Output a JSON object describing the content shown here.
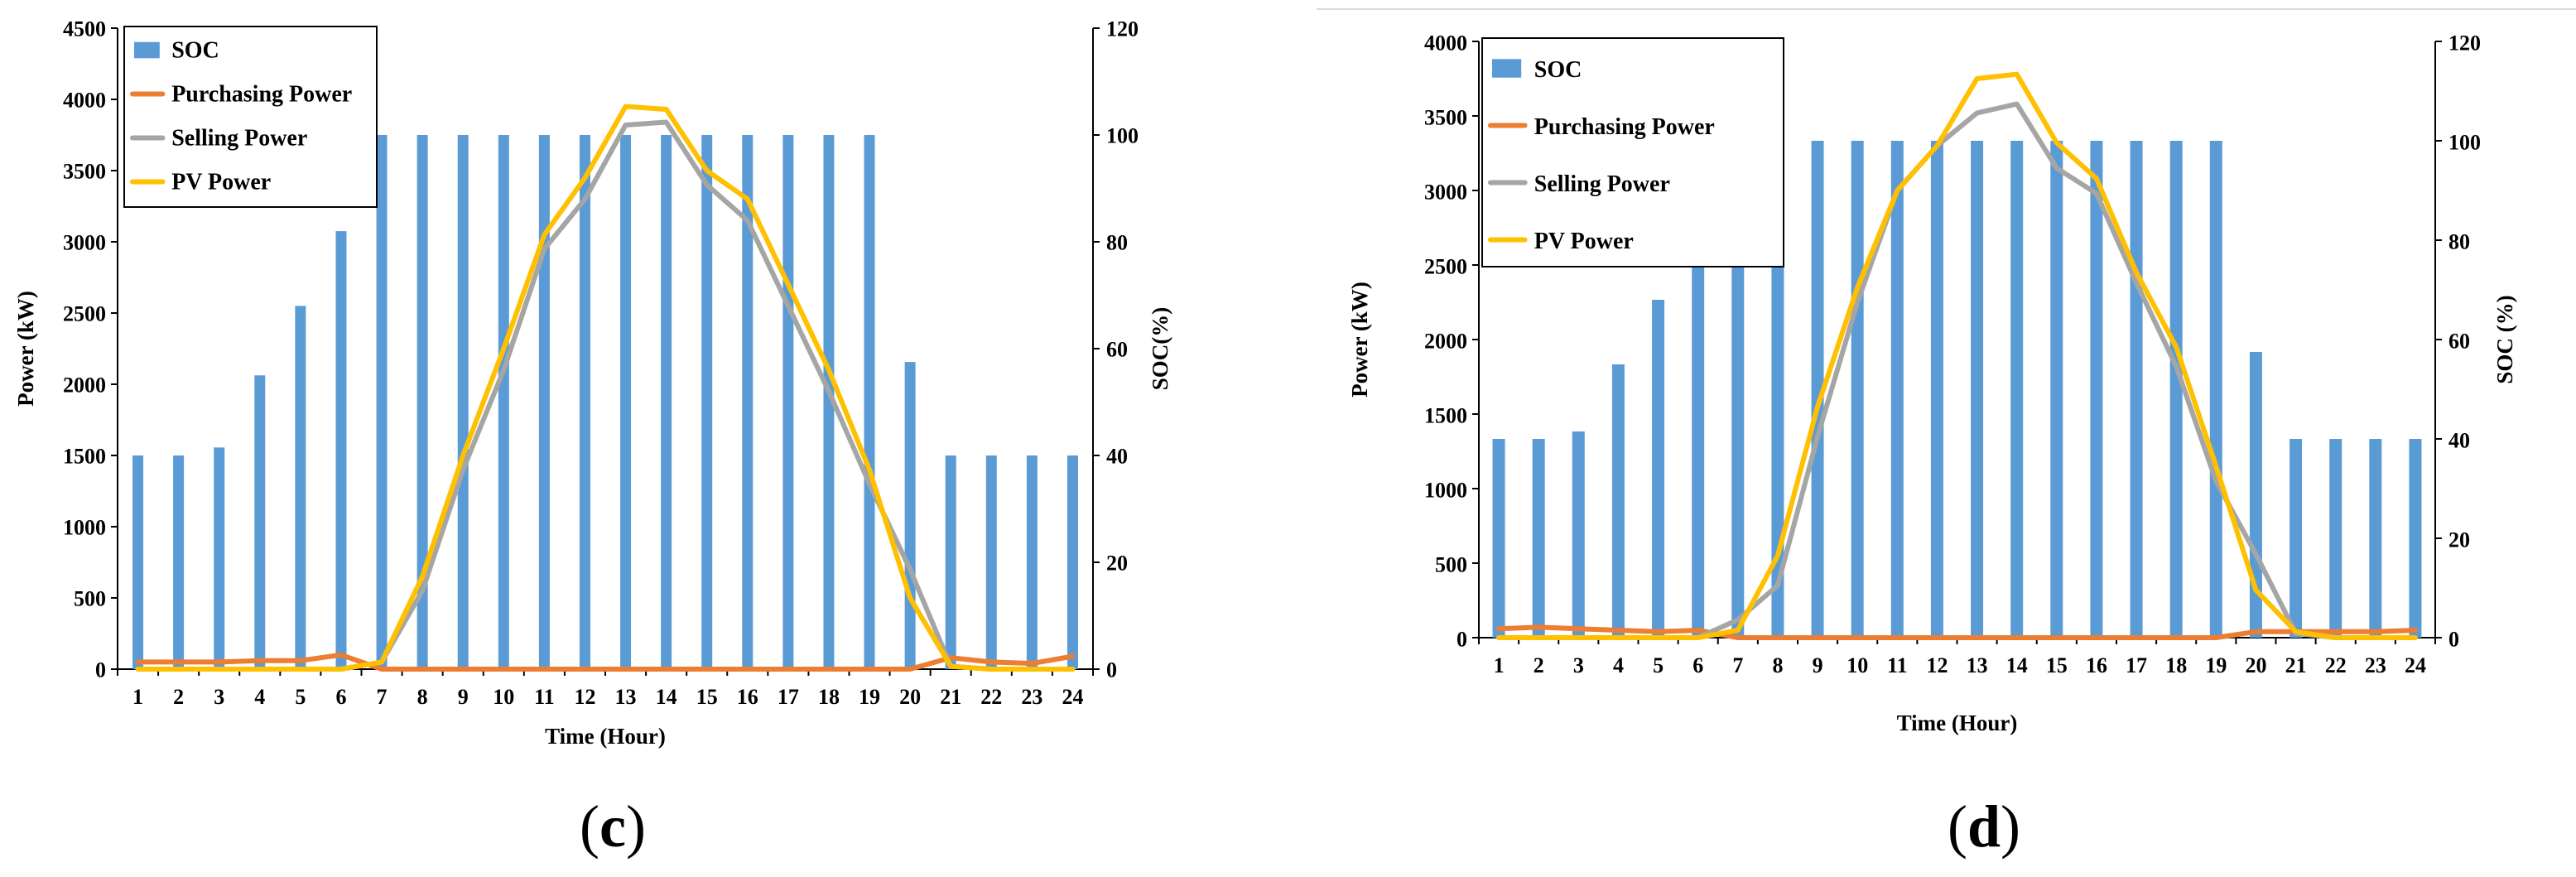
{
  "chart_data": [
    {
      "type": "bar+line",
      "panel_label": "c",
      "x": [
        1,
        2,
        3,
        4,
        5,
        6,
        7,
        8,
        9,
        10,
        11,
        12,
        13,
        14,
        15,
        16,
        17,
        18,
        19,
        20,
        21,
        22,
        23,
        24
      ],
      "xlabel": "Time (Hour)",
      "ylabel": "Power (kW)",
      "y2label": "SOC(%)",
      "ylim": [
        0,
        4500
      ],
      "yticks": [
        0,
        500,
        1000,
        1500,
        2000,
        2500,
        3000,
        3500,
        4000,
        4500
      ],
      "y2lim": [
        0,
        120
      ],
      "y2ticks": [
        0,
        20,
        40,
        60,
        80,
        100,
        120
      ],
      "legend": [
        "SOC",
        "Purchasing Power",
        "Selling Power",
        "PV Power"
      ],
      "series": [
        {
          "name": "SOC",
          "axis": "right",
          "kind": "bar",
          "color": "#5b9bd5",
          "values": [
            40,
            40,
            41.5,
            55,
            68,
            82,
            100,
            100,
            100,
            100,
            100,
            100,
            100,
            100,
            100,
            100,
            100,
            100,
            100,
            57.5,
            40,
            40,
            40,
            40
          ]
        },
        {
          "name": "Purchasing Power",
          "axis": "left",
          "kind": "line",
          "color": "#ed7d31",
          "values": [
            50,
            50,
            50,
            60,
            60,
            100,
            0,
            0,
            0,
            0,
            0,
            0,
            0,
            0,
            0,
            0,
            0,
            0,
            0,
            0,
            80,
            50,
            40,
            90
          ]
        },
        {
          "name": "Selling Power",
          "axis": "left",
          "kind": "line",
          "color": "#a5a5a5",
          "values": [
            0,
            0,
            0,
            0,
            0,
            0,
            50,
            550,
            1400,
            2100,
            2950,
            3300,
            3820,
            3840,
            3400,
            3150,
            2550,
            1950,
            1300,
            700,
            20,
            0,
            0,
            0
          ]
        },
        {
          "name": "PV Power",
          "axis": "left",
          "kind": "line",
          "color": "#ffc000",
          "values": [
            0,
            0,
            0,
            0,
            0,
            0,
            50,
            650,
            1500,
            2250,
            3050,
            3450,
            3950,
            3930,
            3500,
            3300,
            2700,
            2100,
            1400,
            500,
            20,
            0,
            0,
            0
          ]
        }
      ]
    },
    {
      "type": "bar+line",
      "panel_label": "d",
      "x": [
        1,
        2,
        3,
        4,
        5,
        6,
        7,
        8,
        9,
        10,
        11,
        12,
        13,
        14,
        15,
        16,
        17,
        18,
        19,
        20,
        21,
        22,
        23,
        24
      ],
      "xlabel": "Time (Hour)",
      "ylabel": "Power (kW)",
      "y2label": "SOC (%)",
      "ylim": [
        0,
        4000
      ],
      "yticks": [
        0,
        500,
        1000,
        1500,
        2000,
        2500,
        3000,
        3500,
        4000
      ],
      "y2lim": [
        0,
        120
      ],
      "y2ticks": [
        0,
        20,
        40,
        60,
        80,
        100,
        120
      ],
      "legend": [
        "SOC",
        "Purchasing Power",
        "Selling Power",
        "PV Power"
      ],
      "series": [
        {
          "name": "SOC",
          "axis": "right",
          "kind": "bar",
          "color": "#5b9bd5",
          "values": [
            40,
            40,
            41.5,
            55,
            68,
            82,
            100,
            100,
            100,
            100,
            100,
            100,
            100,
            100,
            100,
            100,
            100,
            100,
            100,
            57.5,
            40,
            40,
            40,
            40
          ]
        },
        {
          "name": "Purchasing Power",
          "axis": "left",
          "kind": "line",
          "color": "#ed7d31",
          "values": [
            60,
            70,
            60,
            50,
            40,
            50,
            0,
            0,
            0,
            0,
            0,
            0,
            0,
            0,
            0,
            0,
            0,
            0,
            0,
            40,
            40,
            40,
            40,
            50
          ]
        },
        {
          "name": "Selling Power",
          "axis": "left",
          "kind": "line",
          "color": "#a5a5a5",
          "values": [
            0,
            0,
            0,
            0,
            0,
            0,
            120,
            350,
            1350,
            2250,
            3000,
            3300,
            3520,
            3580,
            3150,
            2980,
            2380,
            1820,
            1050,
            560,
            30,
            0,
            0,
            0
          ]
        },
        {
          "name": "PV Power",
          "axis": "left",
          "kind": "line",
          "color": "#ffc000",
          "values": [
            0,
            0,
            0,
            0,
            0,
            0,
            50,
            550,
            1550,
            2350,
            3000,
            3300,
            3750,
            3780,
            3320,
            3080,
            2450,
            1950,
            1150,
            320,
            40,
            0,
            0,
            0
          ]
        }
      ]
    }
  ]
}
